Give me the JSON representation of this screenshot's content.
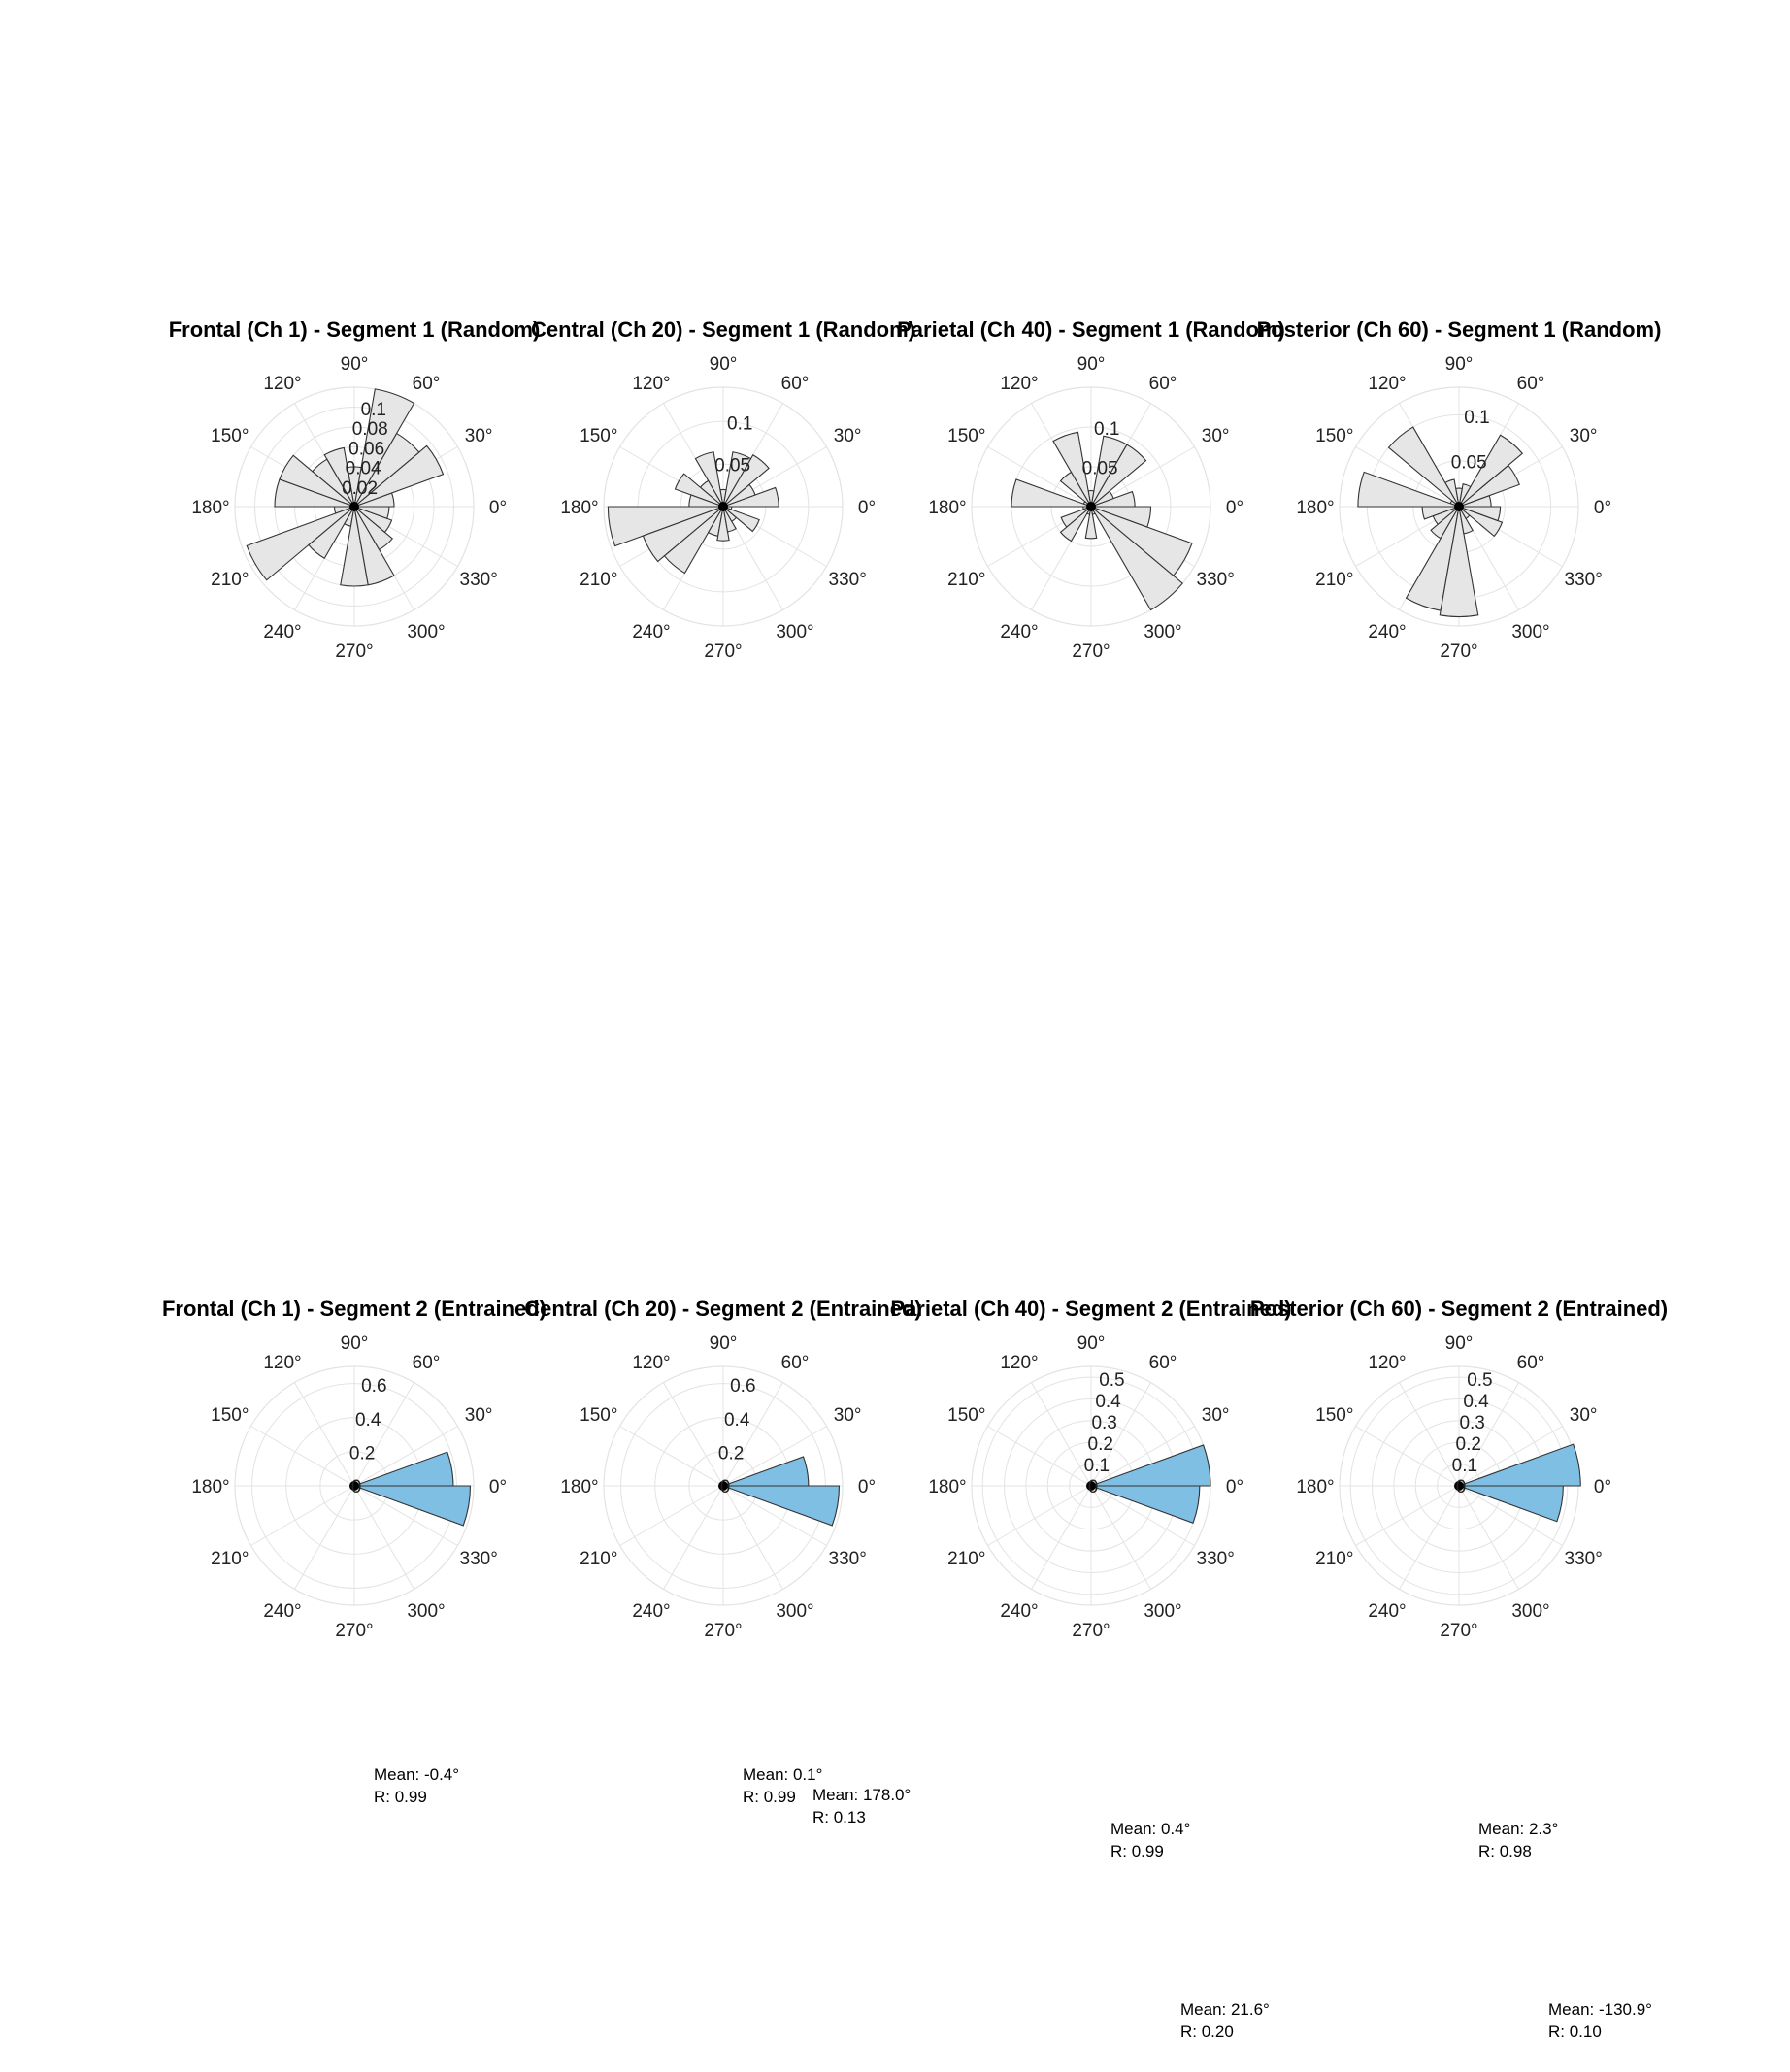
{
  "figure": {
    "background": "#ffffff"
  },
  "colors": {
    "random_fill": "#e6e6e6",
    "entrained_fill": "#7fbfe3",
    "bar_edge": "#333333",
    "grid": "#e3e3e3",
    "center_marker": "#000000"
  },
  "chart_data": [
    {
      "type": "polar-histogram",
      "title": "Frontal (Ch 1) - Segment 1 (Random)",
      "theta_tick_labels": [
        "0°",
        "30°",
        "60°",
        "90°",
        "120°",
        "150°",
        "180°",
        "210°",
        "240°",
        "270°",
        "300°",
        "330°"
      ],
      "r_max": 0.12,
      "r_ticks": [
        0.02,
        0.04,
        0.06,
        0.08,
        0.1
      ],
      "r_tick_labels": [
        "0.02",
        "0.04",
        "0.06",
        "0.08",
        "0.1"
      ],
      "bin_width_deg": 20,
      "bin_centers_deg": [
        10,
        30,
        50,
        70,
        90,
        110,
        130,
        150,
        170,
        190,
        210,
        230,
        250,
        270,
        290,
        310,
        330,
        350
      ],
      "values": [
        0.04,
        0.095,
        0.085,
        0.12,
        0.04,
        0.06,
        0.055,
        0.08,
        0.08,
        0.02,
        0.115,
        0.06,
        0.02,
        0.08,
        0.08,
        0.05,
        0.04,
        0.035
      ],
      "fill": "random",
      "annotations": []
    },
    {
      "type": "polar-histogram",
      "title": "Central (Ch 20) - Segment 1 (Random)",
      "theta_tick_labels": [
        "0°",
        "30°",
        "60°",
        "90°",
        "120°",
        "150°",
        "180°",
        "210°",
        "240°",
        "270°",
        "300°",
        "330°"
      ],
      "r_max": 0.14,
      "r_ticks": [
        0.05,
        0.1
      ],
      "r_tick_labels": [
        "0.05",
        "0.1"
      ],
      "bin_width_deg": 20,
      "bin_centers_deg": [
        10,
        30,
        50,
        70,
        90,
        110,
        130,
        150,
        170,
        190,
        210,
        230,
        250,
        270,
        290,
        310,
        330,
        350
      ],
      "values": [
        0.065,
        0.04,
        0.07,
        0.065,
        0.02,
        0.065,
        0.035,
        0.06,
        0.04,
        0.135,
        0.1,
        0.09,
        0.035,
        0.04,
        0.03,
        0.02,
        0.045,
        0.01
      ],
      "fill": "random",
      "annotations": []
    },
    {
      "type": "polar-histogram",
      "title": "Parietal (Ch 40) - Segment 1 (Random)",
      "theta_tick_labels": [
        "0°",
        "30°",
        "60°",
        "90°",
        "120°",
        "150°",
        "180°",
        "210°",
        "240°",
        "270°",
        "300°",
        "330°"
      ],
      "r_max": 0.15,
      "r_ticks": [
        0.05,
        0.1
      ],
      "r_tick_labels": [
        "0.05",
        "0.1"
      ],
      "bin_width_deg": 20,
      "bin_centers_deg": [
        10,
        30,
        50,
        70,
        90,
        110,
        130,
        150,
        170,
        190,
        210,
        230,
        250,
        270,
        290,
        310,
        330,
        350
      ],
      "values": [
        0.055,
        0.03,
        0.09,
        0.09,
        0.02,
        0.095,
        0.05,
        0.01,
        0.1,
        0.01,
        0.04,
        0.05,
        0.01,
        0.04,
        0.01,
        0.15,
        0.135,
        0.075
      ],
      "fill": "random",
      "annotations": []
    },
    {
      "type": "polar-histogram",
      "title": "Posterior (Ch 60) - Segment 1 (Random)",
      "theta_tick_labels": [
        "0°",
        "30°",
        "60°",
        "90°",
        "120°",
        "150°",
        "180°",
        "210°",
        "240°",
        "270°",
        "300°",
        "330°"
      ],
      "r_max": 0.13,
      "r_ticks": [
        0.05,
        0.1
      ],
      "r_tick_labels": [
        "0.05",
        "0.1"
      ],
      "bin_width_deg": 20,
      "bin_centers_deg": [
        10,
        30,
        50,
        70,
        90,
        110,
        130,
        150,
        170,
        190,
        210,
        230,
        250,
        270,
        290,
        310,
        330,
        350
      ],
      "values": [
        0.035,
        0.07,
        0.09,
        0.025,
        0.02,
        0.03,
        0.1,
        0.01,
        0.11,
        0.04,
        0.03,
        0.04,
        0.115,
        0.12,
        0.03,
        0.015,
        0.05,
        0.045
      ],
      "fill": "random",
      "annotations": []
    },
    {
      "type": "polar-histogram",
      "title": "Frontal (Ch 1) - Segment 2 (Entrained)",
      "theta_tick_labels": [
        "0°",
        "30°",
        "60°",
        "90°",
        "120°",
        "150°",
        "180°",
        "210°",
        "240°",
        "270°",
        "300°",
        "330°"
      ],
      "r_max": 0.7,
      "r_ticks": [
        0,
        0.2,
        0.4,
        0.6
      ],
      "r_tick_labels": [
        "0",
        "0.2",
        "0.4",
        "0.6"
      ],
      "bin_width_deg": 20,
      "bin_centers_deg": [
        10,
        350
      ],
      "values": [
        0.58,
        0.68
      ],
      "fill": "entrained",
      "annotations": [
        {
          "mean": "Mean: -0.4°",
          "r": "R: 0.99"
        }
      ]
    },
    {
      "type": "polar-histogram",
      "title": "Central (Ch 20) - Segment 2 (Entrained)",
      "theta_tick_labels": [
        "0°",
        "30°",
        "60°",
        "90°",
        "120°",
        "150°",
        "180°",
        "210°",
        "240°",
        "270°",
        "300°",
        "330°"
      ],
      "r_max": 0.7,
      "r_ticks": [
        0,
        0.2,
        0.4,
        0.6
      ],
      "r_tick_labels": [
        "0",
        "0.2",
        "0.4",
        "0.6"
      ],
      "bin_width_deg": 20,
      "bin_centers_deg": [
        10,
        350
      ],
      "values": [
        0.5,
        0.68
      ],
      "fill": "entrained",
      "annotations": [
        {
          "mean": "Mean: 0.1°",
          "r": "R: 0.99"
        },
        {
          "mean": "Mean: 178.0°",
          "r": "R: 0.13"
        }
      ]
    },
    {
      "type": "polar-histogram",
      "title": "Parietal (Ch 40) - Segment 2 (Entrained)",
      "theta_tick_labels": [
        "0°",
        "30°",
        "60°",
        "90°",
        "120°",
        "150°",
        "180°",
        "210°",
        "240°",
        "270°",
        "300°",
        "330°"
      ],
      "r_max": 0.55,
      "r_ticks": [
        0,
        0.1,
        0.2,
        0.3,
        0.4,
        0.5
      ],
      "r_tick_labels": [
        "0",
        "0.1",
        "0.2",
        "0.3",
        "0.4",
        "0.5"
      ],
      "bin_width_deg": 20,
      "bin_centers_deg": [
        10,
        350
      ],
      "values": [
        0.55,
        0.5
      ],
      "fill": "entrained",
      "annotations": [
        {
          "mean": "Mean: 0.4°",
          "r": "R: 0.99"
        },
        {
          "mean": "Mean: 21.6°",
          "r": "R: 0.20"
        }
      ]
    },
    {
      "type": "polar-histogram",
      "title": "Posterior (Ch 60) - Segment 2 (Entrained)",
      "theta_tick_labels": [
        "0°",
        "30°",
        "60°",
        "90°",
        "120°",
        "150°",
        "180°",
        "210°",
        "240°",
        "270°",
        "300°",
        "330°"
      ],
      "r_max": 0.55,
      "r_ticks": [
        0,
        0.1,
        0.2,
        0.3,
        0.4,
        0.5
      ],
      "r_tick_labels": [
        "0",
        "0.1",
        "0.2",
        "0.3",
        "0.4",
        "0.5"
      ],
      "bin_width_deg": 20,
      "bin_centers_deg": [
        10,
        350
      ],
      "values": [
        0.56,
        0.48
      ],
      "fill": "entrained",
      "annotations": [
        {
          "mean": "Mean: 2.3°",
          "r": "R: 0.98"
        },
        {
          "mean": "Mean: -130.9°",
          "r": "R: 0.10"
        }
      ]
    }
  ]
}
